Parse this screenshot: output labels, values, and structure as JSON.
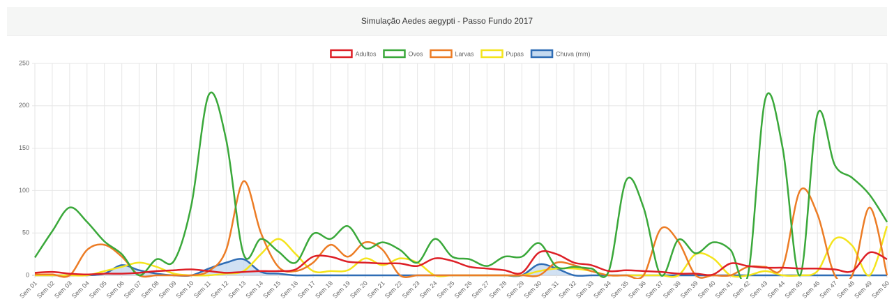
{
  "chart_data": {
    "type": "line",
    "title": "Simulação Aedes aegypti - Passo Fundo 2017",
    "categories": [
      "Sem 01",
      "Sem 02",
      "Sem 03",
      "Sem 04",
      "Sem 05",
      "Sem 06",
      "Sem 07",
      "Sem 08",
      "Sem 09",
      "Sem 10",
      "Sem 11",
      "Sem 12",
      "Sem 13",
      "Sem 14",
      "Sem 15",
      "Sem 16",
      "Sem 17",
      "Sem 18",
      "Sem 19",
      "Sem 20",
      "Sem 21",
      "Sem 22",
      "Sem 23",
      "Sem 24",
      "Sem 25",
      "Sem 26",
      "Sem 27",
      "Sem 28",
      "Sem 29",
      "Sem 30",
      "Sem 31",
      "Sem 32",
      "Sem 33",
      "Sem 34",
      "Sem 35",
      "Sem 36",
      "Sem 37",
      "Sem 38",
      "Sem 39",
      "Sem 40",
      "Sem 41",
      "Sem 42",
      "Sem 43",
      "Sem 44",
      "Sem 45",
      "Sem 46",
      "Sem 47",
      "Sem 48",
      "Sem 49",
      "Sem 50"
    ],
    "series": [
      {
        "name": "Adultos",
        "color": "#dd1f26",
        "values": [
          3,
          4,
          2,
          1,
          2,
          2,
          3,
          5,
          6,
          7,
          5,
          3,
          4,
          5,
          5,
          7,
          22,
          22,
          16,
          15,
          14,
          14,
          11,
          20,
          17,
          10,
          8,
          6,
          3,
          27,
          25,
          15,
          12,
          5,
          6,
          5,
          4,
          2,
          2,
          1,
          14,
          11,
          9,
          9,
          8,
          8,
          7,
          5,
          27,
          19
        ]
      },
      {
        "name": "Ovos",
        "color": "#3aa83a",
        "values": [
          21,
          52,
          80,
          63,
          40,
          25,
          0,
          19,
          17,
          83,
          213,
          160,
          25,
          43,
          28,
          15,
          49,
          43,
          58,
          32,
          39,
          30,
          15,
          43,
          22,
          19,
          11,
          22,
          22,
          38,
          10,
          10,
          8,
          5,
          112,
          80,
          0,
          42,
          26,
          39,
          30,
          0,
          208,
          150,
          0,
          190,
          130,
          115,
          95,
          63
        ]
      },
      {
        "name": "Larvas",
        "color": "#ec7c25",
        "values": [
          1,
          1,
          0,
          30,
          36,
          22,
          0,
          0,
          0,
          0,
          5,
          30,
          111,
          50,
          10,
          5,
          15,
          36,
          22,
          39,
          30,
          0,
          0,
          0,
          0,
          0,
          0,
          0,
          0,
          0,
          15,
          12,
          5,
          0,
          0,
          0,
          55,
          40,
          0,
          0,
          0,
          10,
          10,
          10,
          100,
          72,
          0,
          0,
          80,
          0
        ]
      },
      {
        "name": "Pupas",
        "color": "#f4e41c",
        "values": [
          0,
          0,
          0,
          0,
          5,
          10,
          15,
          10,
          2,
          0,
          0,
          2,
          5,
          25,
          43,
          25,
          5,
          5,
          6,
          20,
          12,
          20,
          15,
          0,
          0,
          0,
          0,
          0,
          0,
          5,
          8,
          8,
          5,
          0,
          0,
          0,
          0,
          0,
          25,
          20,
          0,
          0,
          5,
          0,
          0,
          5,
          43,
          35,
          0,
          58
        ]
      },
      {
        "name": "Chuva (mm)",
        "color": "#2f6db5",
        "fill": "#c5daf0",
        "values": [
          0,
          0,
          0,
          0,
          2,
          12,
          6,
          2,
          0,
          0,
          8,
          15,
          19,
          4,
          2,
          0,
          0,
          0,
          0,
          0,
          0,
          0,
          0,
          0,
          0,
          0,
          0,
          0,
          0,
          13,
          8,
          0,
          0,
          0,
          0,
          0,
          0,
          0,
          0,
          0,
          0,
          0,
          0,
          0,
          0,
          0,
          0,
          0,
          0,
          0
        ]
      }
    ],
    "ylim": [
      0,
      250
    ],
    "yticks": [
      0,
      50,
      100,
      150,
      200,
      250
    ],
    "grid": true,
    "legend": "top"
  }
}
